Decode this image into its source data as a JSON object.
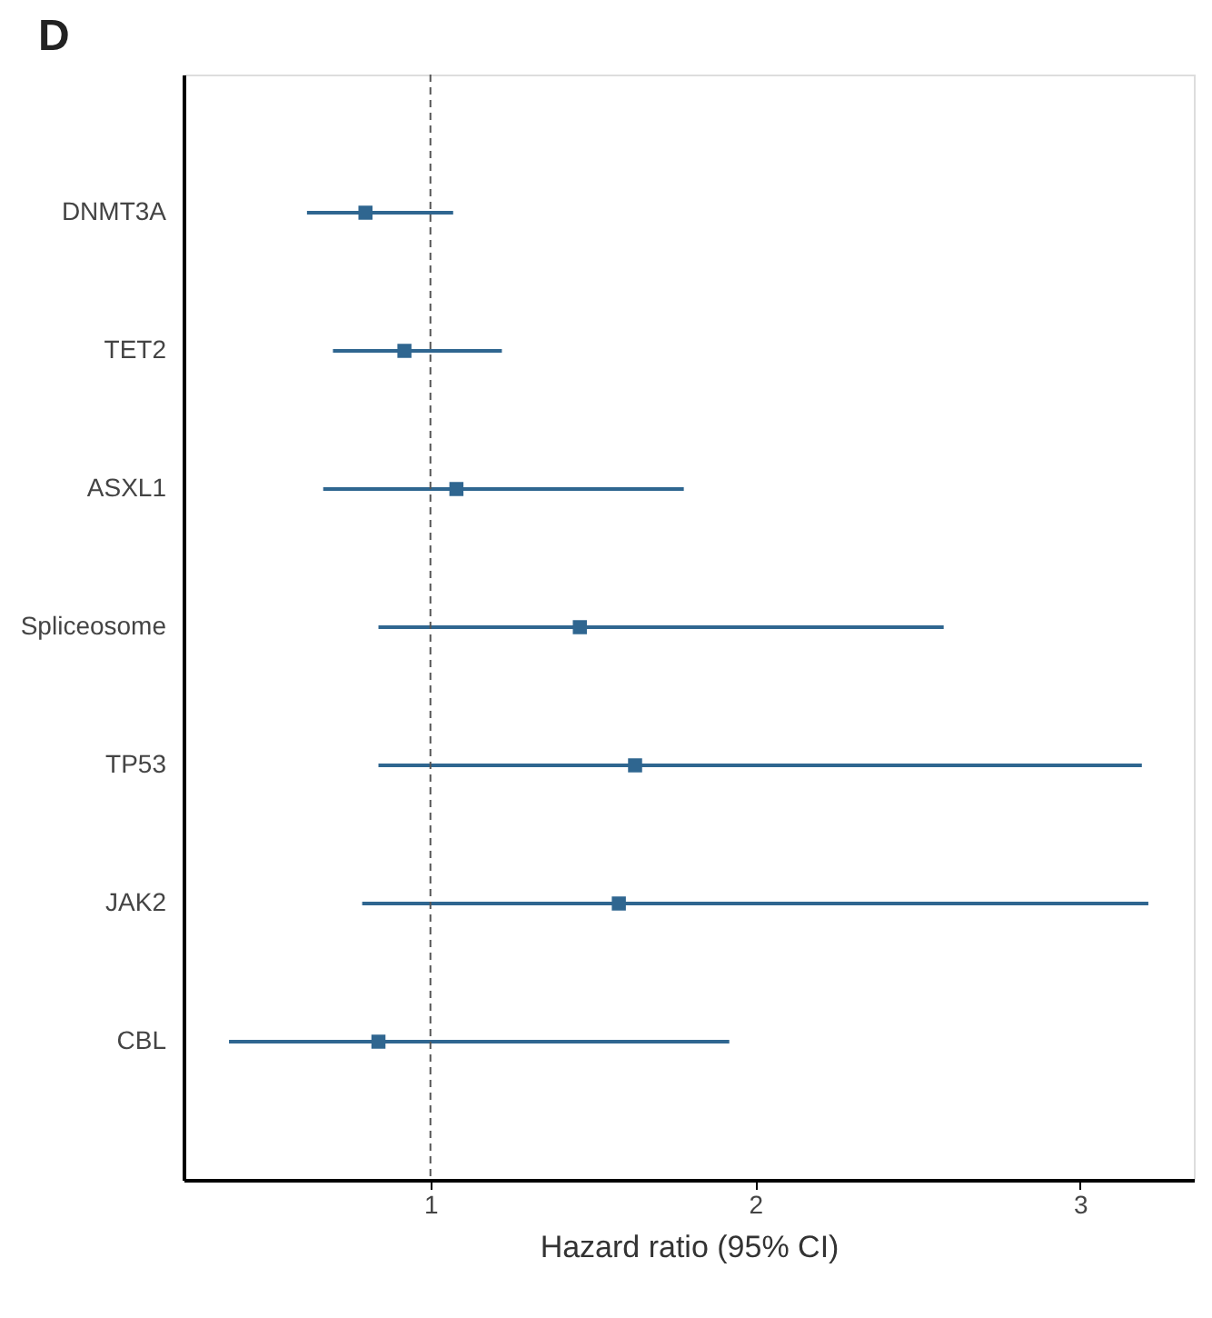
{
  "chart_data": {
    "type": "scatter",
    "orientation": "horizontal",
    "title": "D",
    "xlabel": "Hazard ratio (95% CI)",
    "categories": [
      "DNMT3A",
      "TET2",
      "ASXL1",
      "Spliceosome",
      "TP53",
      "JAK2",
      "CBL"
    ],
    "values": [
      0.8,
      0.92,
      1.08,
      1.46,
      1.63,
      1.58,
      0.84
    ],
    "errors": [
      [
        0.62,
        1.07
      ],
      [
        0.7,
        1.22
      ],
      [
        0.67,
        1.78
      ],
      [
        0.84,
        2.58
      ],
      [
        0.84,
        3.19
      ],
      [
        0.79,
        3.21
      ],
      [
        0.38,
        1.92
      ]
    ],
    "color": "#2f6690",
    "marker": "square",
    "grid": false,
    "xlim": [
      0.24,
      3.35
    ],
    "xticks": [
      1,
      2,
      3
    ],
    "ref_lines": [
      {
        "axis": "x",
        "value": 1,
        "line_style": "dashed",
        "color": "#555555"
      }
    ]
  }
}
